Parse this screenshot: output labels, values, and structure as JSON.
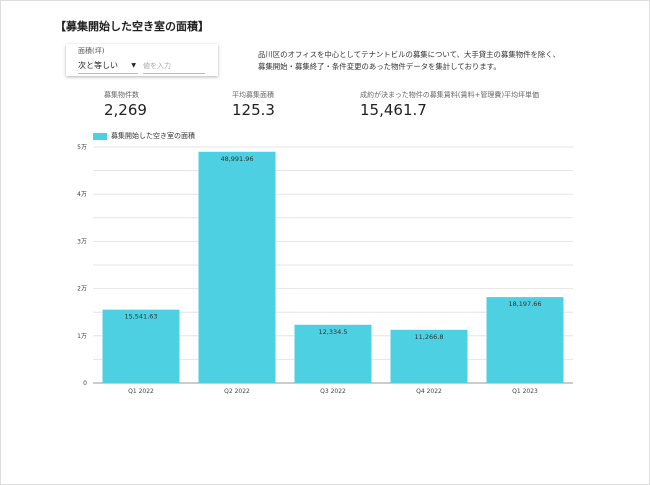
{
  "title": "【募集開始した空き室の面積】",
  "filter": {
    "label": "面積(坪)",
    "operator": "次と等しい",
    "value_placeholder": "値を入力"
  },
  "description": [
    "品川区のオフィスを中心としてテナントビルの募集について、大手貸主の募集物件を除く、",
    "募集開始・募集終了・条件変更のあった物件データを集計しております。"
  ],
  "kpis": [
    {
      "label": "募集物件数",
      "value": "2,269"
    },
    {
      "label": "平均募集面積",
      "value": "125.3"
    },
    {
      "label": "成約が決まった物件の募集賃料(賃料+管理費)平均坪単価",
      "value": "15,461.7"
    }
  ],
  "chart_data": {
    "type": "bar",
    "categories": [
      "Q1 2022",
      "Q2 2022",
      "Q3 2022",
      "Q4 2022",
      "Q1 2023"
    ],
    "series": [
      {
        "name": "募集開始した空き室の面積",
        "values": [
          15541.63,
          48991.96,
          12334.5,
          11266.8,
          18197.66
        ]
      }
    ],
    "data_labels": [
      "15,541.63",
      "48,991.96",
      "12,334.5",
      "11,266.8",
      "18,197.66"
    ],
    "ylim": [
      0,
      50000
    ],
    "yticks": [
      0,
      10000,
      20000,
      30000,
      40000,
      50000
    ],
    "ytick_labels": [
      "0",
      "1万",
      "2万",
      "3万",
      "4万",
      "5万"
    ],
    "grid": true,
    "legend": "top-left",
    "color": "#4dd0e1"
  }
}
